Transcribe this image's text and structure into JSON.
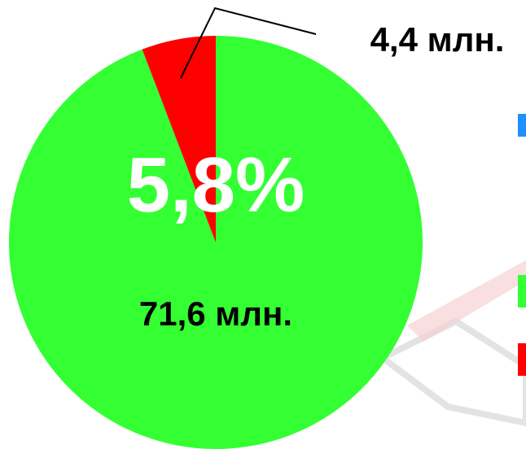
{
  "chart_data": {
    "type": "pie",
    "title": "",
    "center_label": "5,8%",
    "slices": [
      {
        "label": "71,6 млн.",
        "value": 71.6,
        "color": "#33ff33"
      },
      {
        "label": "4,4 млн.",
        "value": 4.4,
        "color": "#ff0000"
      }
    ],
    "legend": {
      "placement": "right",
      "colors": [
        "#1e90ff",
        "#33ff33",
        "#ff0000"
      ]
    }
  }
}
